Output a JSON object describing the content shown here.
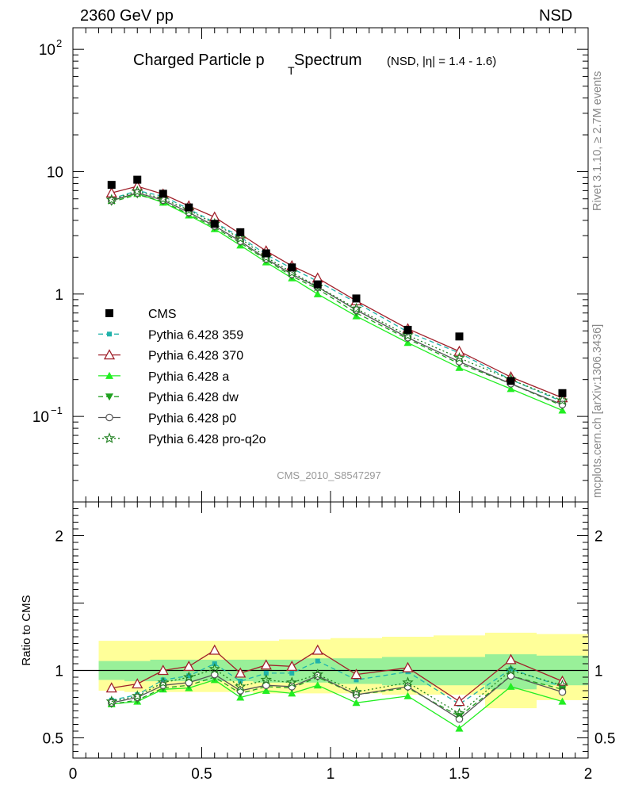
{
  "header": {
    "energy_label": "2360 GeV pp",
    "process_label": "NSD"
  },
  "side_labels": {
    "rivet": "Rivet 3.1.10, ≥ 2.7M events",
    "mcplots": "mcplots.cern.ch [arXiv:1306.3436]"
  },
  "chart_data": [
    {
      "type": "scatter",
      "panel": "main",
      "title": "Charged Particle p",
      "title_sub": "T",
      "title_tail": " Spectrum",
      "title_note": "(NSD, |η| = 1.4 - 1.6)",
      "watermark": "CMS_2010_S8547297",
      "xlabel": "",
      "ylabel": "",
      "xlim": [
        0,
        2
      ],
      "ylim": [
        0.02,
        150
      ],
      "yscale": "log",
      "x_ticks": [
        "0",
        "0.5",
        "1",
        "1.5",
        "2"
      ],
      "y_tick_labels": [
        {
          "value": 100,
          "base": "10",
          "exp": "2"
        },
        {
          "value": 10,
          "base": "10",
          "exp": ""
        },
        {
          "value": 1,
          "base": "1",
          "exp": ""
        },
        {
          "value": 0.1,
          "base": "10",
          "exp": "−1"
        }
      ],
      "legend_position": "left-middle",
      "x": [
        0.15,
        0.25,
        0.35,
        0.45,
        0.55,
        0.65,
        0.75,
        0.85,
        0.95,
        1.1,
        1.3,
        1.5,
        1.7,
        1.9
      ],
      "series": [
        {
          "name": "CMS",
          "style": "data",
          "color": "#000000",
          "marker": "square",
          "values": [
            7.8,
            8.6,
            6.6,
            5.1,
            3.75,
            3.2,
            2.15,
            1.65,
            1.2,
            0.92,
            0.51,
            0.45,
            0.195,
            0.155
          ]
        },
        {
          "name": "Pythia 6.428 359",
          "style": "dashed",
          "color": "#20b2aa",
          "marker": "small-square",
          "values": [
            6.0,
            7.0,
            6.3,
            4.95,
            3.85,
            2.93,
            2.1,
            1.62,
            1.27,
            0.85,
            0.49,
            0.33,
            0.2,
            0.132
          ]
        },
        {
          "name": "Pythia 6.428 370",
          "style": "solid",
          "color": "#a0202a",
          "marker": "open-triangle",
          "values": [
            6.7,
            7.6,
            6.55,
            5.25,
            4.25,
            3.1,
            2.25,
            1.7,
            1.35,
            0.88,
            0.52,
            0.34,
            0.21,
            0.142
          ]
        },
        {
          "name": "Pythia 6.428 a",
          "style": "solid",
          "color": "#22ee22",
          "marker": "filled-triangle",
          "values": [
            5.8,
            6.6,
            5.6,
            4.4,
            3.4,
            2.5,
            1.82,
            1.35,
            1.0,
            0.66,
            0.4,
            0.25,
            0.168,
            0.112
          ]
        },
        {
          "name": "Pythia 6.428 dw",
          "style": "dashed",
          "color": "#20a020",
          "marker": "filled-triangle-down",
          "values": [
            5.65,
            6.5,
            5.7,
            4.5,
            3.5,
            2.62,
            1.9,
            1.4,
            1.1,
            0.7,
            0.43,
            0.27,
            0.185,
            0.122
          ]
        },
        {
          "name": "Pythia 6.428 p0",
          "style": "solid",
          "color": "#555555",
          "marker": "open-circle",
          "values": [
            5.8,
            6.7,
            5.85,
            4.65,
            3.6,
            2.7,
            1.94,
            1.45,
            1.14,
            0.74,
            0.44,
            0.28,
            0.185,
            0.125
          ]
        },
        {
          "name": "Pythia 6.428 pro-q2o",
          "style": "dotted",
          "color": "#208020",
          "marker": "open-star",
          "values": [
            5.9,
            6.9,
            6.0,
            4.85,
            3.75,
            2.85,
            2.0,
            1.5,
            1.15,
            0.76,
            0.46,
            0.3,
            0.2,
            0.135
          ]
        }
      ]
    },
    {
      "type": "line",
      "panel": "ratio",
      "xlabel": "",
      "ylabel": "Ratio to CMS",
      "xlim": [
        0,
        2
      ],
      "ylim": [
        0.35,
        2.25
      ],
      "y_ticks": [
        "0.5",
        "1",
        "2"
      ],
      "x_ticks": [
        "0",
        "0.5",
        "1",
        "1.5",
        "2"
      ],
      "reference_line": 1,
      "bands": {
        "bin_edges": [
          0.1,
          0.2,
          0.3,
          0.4,
          0.5,
          0.6,
          0.7,
          0.8,
          0.9,
          1.0,
          1.2,
          1.4,
          1.6,
          1.8,
          2.0
        ],
        "outer_yellow": {
          "color": "#ffff99",
          "lo": [
            0.85,
            0.84,
            0.84,
            0.84,
            0.84,
            0.84,
            0.83,
            0.83,
            0.83,
            0.83,
            0.82,
            0.82,
            0.72,
            0.78
          ],
          "hi": [
            1.22,
            1.22,
            1.22,
            1.22,
            1.22,
            1.22,
            1.22,
            1.23,
            1.23,
            1.24,
            1.25,
            1.26,
            1.28,
            1.27
          ]
        },
        "inner_green": {
          "color": "#99f099",
          "lo": [
            0.93,
            0.92,
            0.92,
            0.92,
            0.92,
            0.92,
            0.91,
            0.91,
            0.91,
            0.9,
            0.89,
            0.89,
            0.86,
            0.89
          ],
          "hi": [
            1.07,
            1.07,
            1.08,
            1.08,
            1.08,
            1.08,
            1.08,
            1.08,
            1.09,
            1.09,
            1.1,
            1.1,
            1.12,
            1.11
          ]
        }
      },
      "x": [
        0.15,
        0.25,
        0.35,
        0.45,
        0.55,
        0.65,
        0.75,
        0.85,
        0.95,
        1.1,
        1.3,
        1.5,
        1.7,
        1.9
      ],
      "series": [
        {
          "name": "Pythia 6.428 359",
          "values": [
            0.78,
            0.82,
            0.93,
            0.96,
            1.05,
            0.92,
            0.98,
            0.98,
            1.07,
            0.93,
            0.99,
            0.75,
            1.01,
            0.88
          ]
        },
        {
          "name": "Pythia 6.428 370",
          "values": [
            0.87,
            0.9,
            1.0,
            1.03,
            1.15,
            0.98,
            1.04,
            1.03,
            1.15,
            0.97,
            1.02,
            0.77,
            1.08,
            0.92
          ]
        },
        {
          "name": "Pythia 6.428 a",
          "values": [
            0.75,
            0.77,
            0.86,
            0.87,
            0.93,
            0.8,
            0.85,
            0.83,
            0.89,
            0.76,
            0.81,
            0.57,
            0.88,
            0.77
          ]
        },
        {
          "name": "Pythia 6.428 dw",
          "values": [
            0.75,
            0.78,
            0.87,
            0.89,
            0.95,
            0.83,
            0.88,
            0.87,
            0.95,
            0.82,
            0.87,
            0.66,
            0.96,
            0.86
          ]
        },
        {
          "name": "Pythia 6.428 p0",
          "values": [
            0.76,
            0.8,
            0.89,
            0.91,
            0.97,
            0.85,
            0.89,
            0.88,
            0.96,
            0.82,
            0.88,
            0.64,
            0.96,
            0.84
          ]
        },
        {
          "name": "Pythia 6.428 pro-q2o",
          "values": [
            0.77,
            0.81,
            0.91,
            0.95,
            1.01,
            0.88,
            0.93,
            0.91,
            0.97,
            0.84,
            0.91,
            0.68,
            1.0,
            0.89
          ]
        }
      ]
    }
  ]
}
